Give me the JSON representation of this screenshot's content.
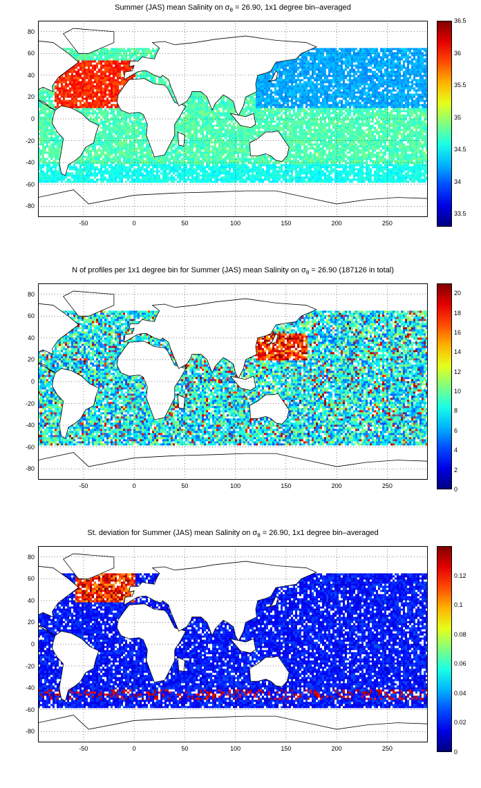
{
  "panels": [
    {
      "id": "salinity",
      "title_prefix": "Summer (JAS) mean Salinity on ",
      "sigma": "σ",
      "sigma_sub": "θ",
      "title_suffix": " = 26.90, 1x1 degree bin–averaged",
      "colorbar_ticks": [
        "36.5",
        "36",
        "35.5",
        "35",
        "34.5",
        "34",
        "33.5"
      ],
      "colorbar_range": [
        33.3,
        36.5
      ],
      "colormap": "jet"
    },
    {
      "id": "nprofiles",
      "title_prefix": "N of profiles per 1x1 degree bin for Summer (JAS) mean Salinity on ",
      "sigma": "σ",
      "sigma_sub": "θ",
      "title_suffix": " = 26.90 (187126 in total)",
      "colorbar_ticks": [
        "20",
        "18",
        "16",
        "14",
        "12",
        "10",
        "8",
        "6",
        "4",
        "2",
        "0"
      ],
      "colorbar_range": [
        0,
        21
      ],
      "colormap": "jet"
    },
    {
      "id": "stdev",
      "title_prefix": "St. deviation for Summer (JAS) mean Salinity on ",
      "sigma": "σ",
      "sigma_sub": "θ",
      "title_suffix": " = 26.90, 1x1 degree bin–averaged",
      "colorbar_ticks": [
        "0.12",
        "0.1",
        "0.08",
        "0.06",
        "0.04",
        "0.02",
        "0"
      ],
      "colorbar_range": [
        0,
        0.14
      ],
      "colormap": "jet"
    }
  ],
  "map_axes": {
    "x_ticks": [
      "-50",
      "0",
      "50",
      "100",
      "150",
      "200",
      "250"
    ],
    "y_ticks": [
      "80",
      "60",
      "40",
      "20",
      "0",
      "-20",
      "-40",
      "-60",
      "-80"
    ],
    "xlim": [
      -95,
      290
    ],
    "ylim": [
      -90,
      90
    ],
    "grid": "dotted"
  }
}
